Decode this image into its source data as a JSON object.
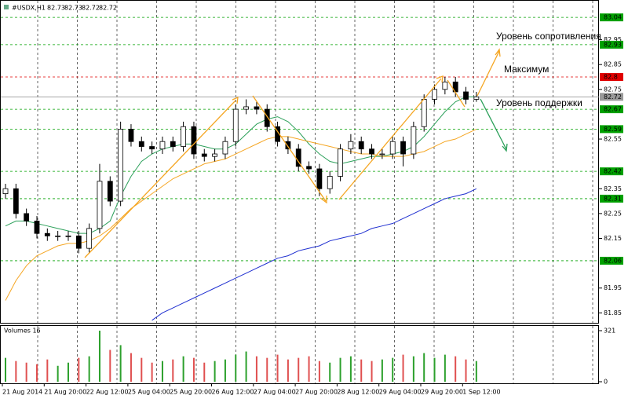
{
  "chart_data": {
    "type": "candlestick",
    "symbol": "#USDX,H1",
    "quote": [
      82.73,
      82.73,
      82.72,
      82.72
    ],
    "ylim": [
      81.81,
      83.11
    ],
    "yticks": [
      82.95,
      82.85,
      82.75,
      82.55,
      82.35,
      82.25,
      82.15,
      81.95,
      81.85
    ],
    "levels": [
      {
        "value": 83.04,
        "color": "#00a000"
      },
      {
        "value": 82.93,
        "color": "#00a000"
      },
      {
        "value": 82.8,
        "color": "#e00000"
      },
      {
        "value": 82.72,
        "color": "#999999"
      },
      {
        "value": 82.67,
        "color": "#00a000"
      },
      {
        "value": 82.59,
        "color": "#00a000"
      },
      {
        "value": 82.42,
        "color": "#00a000"
      },
      {
        "value": 82.31,
        "color": "#00a000"
      },
      {
        "value": 82.06,
        "color": "#00a000"
      }
    ],
    "x_labels": [
      "21 Aug 2014",
      "21 Aug 20:00",
      "22 Aug 12:00",
      "25 Aug 04:00",
      "25 Aug 20:00",
      "26 Aug 12:00",
      "27 Aug 04:00",
      "27 Aug 20:00",
      "28 Aug 12:00",
      "29 Aug 04:00",
      "29 Aug 20:00",
      "1 Sep 12:00"
    ],
    "open": [
      82.33,
      82.35,
      82.25,
      82.22,
      82.17,
      82.16,
      82.16,
      82.16,
      82.11,
      82.19,
      82.38,
      82.3,
      82.59,
      82.54,
      82.52,
      82.51,
      82.54,
      82.52,
      82.6,
      82.49,
      82.48,
      82.49,
      82.54,
      82.67,
      82.68,
      82.67,
      82.6,
      82.54,
      82.51,
      82.44,
      82.43,
      82.35,
      82.4,
      82.51,
      82.54,
      82.51,
      82.49,
      82.49,
      82.54,
      82.49,
      82.6,
      82.71,
      82.75,
      82.78,
      82.74,
      82.71
    ],
    "high": [
      82.37,
      82.37,
      82.27,
      82.24,
      82.19,
      82.18,
      82.18,
      82.18,
      82.21,
      82.45,
      82.4,
      82.62,
      82.61,
      82.56,
      82.54,
      82.56,
      82.56,
      82.62,
      82.62,
      82.51,
      82.51,
      82.56,
      82.69,
      82.71,
      82.7,
      82.69,
      82.62,
      82.56,
      82.53,
      82.46,
      82.45,
      82.42,
      82.53,
      82.57,
      82.56,
      82.53,
      82.51,
      82.56,
      82.56,
      82.62,
      82.73,
      82.77,
      82.8,
      82.8,
      82.76,
      82.74
    ],
    "low": [
      82.31,
      82.23,
      82.2,
      82.15,
      82.14,
      82.14,
      82.14,
      82.09,
      82.09,
      82.17,
      82.28,
      82.28,
      82.52,
      82.5,
      82.49,
      82.49,
      82.5,
      82.5,
      82.47,
      82.46,
      82.46,
      82.47,
      82.52,
      82.65,
      82.65,
      82.58,
      82.52,
      82.49,
      82.42,
      82.41,
      82.32,
      82.33,
      82.38,
      82.49,
      82.49,
      82.47,
      82.47,
      82.47,
      82.44,
      82.47,
      82.58,
      82.69,
      82.73,
      82.72,
      82.69,
      82.7
    ],
    "close": [
      82.35,
      82.25,
      82.22,
      82.17,
      82.16,
      82.16,
      82.16,
      82.11,
      82.19,
      82.38,
      82.3,
      82.59,
      82.54,
      82.52,
      82.51,
      82.54,
      82.52,
      82.6,
      82.49,
      82.48,
      82.49,
      82.54,
      82.67,
      82.68,
      82.67,
      82.6,
      82.54,
      82.51,
      82.44,
      82.43,
      82.35,
      82.4,
      82.51,
      82.54,
      82.51,
      82.49,
      82.49,
      82.54,
      82.49,
      82.6,
      82.71,
      82.75,
      82.78,
      82.74,
      82.71,
      82.72
    ],
    "series": [
      {
        "color": "#2ca05a",
        "values": [
          82.2,
          82.22,
          82.22,
          82.21,
          82.2,
          82.19,
          82.18,
          82.17,
          82.17,
          82.19,
          82.22,
          82.32,
          82.4,
          82.46,
          82.49,
          82.51,
          82.52,
          82.53,
          82.53,
          82.52,
          82.51,
          82.51,
          82.53,
          82.57,
          82.61,
          82.63,
          82.64,
          82.62,
          82.58,
          82.53,
          82.49,
          82.46,
          82.45,
          82.46,
          82.47,
          82.48,
          82.48,
          82.49,
          82.5,
          82.52,
          82.56,
          82.61,
          82.66,
          82.7,
          82.72,
          82.72
        ]
      },
      {
        "color": "#f5a623",
        "values": [
          81.9,
          81.98,
          82.04,
          82.08,
          82.1,
          82.12,
          82.13,
          82.13,
          82.14,
          82.16,
          82.19,
          82.23,
          82.27,
          82.3,
          82.33,
          82.36,
          82.39,
          82.41,
          82.43,
          82.45,
          82.46,
          82.47,
          82.49,
          82.51,
          82.53,
          82.55,
          82.56,
          82.56,
          82.55,
          82.54,
          82.53,
          82.52,
          82.51,
          82.5,
          82.49,
          82.49,
          82.48,
          82.48,
          82.48,
          82.49,
          82.5,
          82.52,
          82.54,
          82.55,
          82.57,
          82.59
        ]
      },
      {
        "color": "#1f2fd0",
        "values": [
          null,
          null,
          null,
          null,
          null,
          null,
          null,
          null,
          null,
          null,
          null,
          null,
          null,
          null,
          81.82,
          81.85,
          81.87,
          81.89,
          81.91,
          81.93,
          81.95,
          81.97,
          81.99,
          82.01,
          82.03,
          82.05,
          82.07,
          82.08,
          82.1,
          82.11,
          82.12,
          82.14,
          82.15,
          82.16,
          82.17,
          82.19,
          82.2,
          82.21,
          82.23,
          82.25,
          82.27,
          82.29,
          82.31,
          82.32,
          82.33,
          82.35
        ]
      }
    ],
    "volume_title": "Volumes 16",
    "vlim": [
      0,
      321
    ],
    "vticks": [
      0,
      321
    ],
    "volumes": [
      150,
      130,
      120,
      110,
      140,
      100,
      120,
      150,
      160,
      321,
      200,
      230,
      180,
      150,
      120,
      130,
      140,
      160,
      150,
      120,
      130,
      140,
      170,
      190,
      160,
      150,
      170,
      140,
      150,
      160,
      130,
      120,
      150,
      160,
      140,
      130,
      140,
      150,
      170,
      160,
      180,
      150,
      170,
      160,
      140,
      130
    ],
    "bull_color": "#2ca02c",
    "bear_color": "#e05050",
    "annotations": [
      "Уровень сопротивления",
      "Максимум",
      "Уровень поддержки"
    ]
  }
}
